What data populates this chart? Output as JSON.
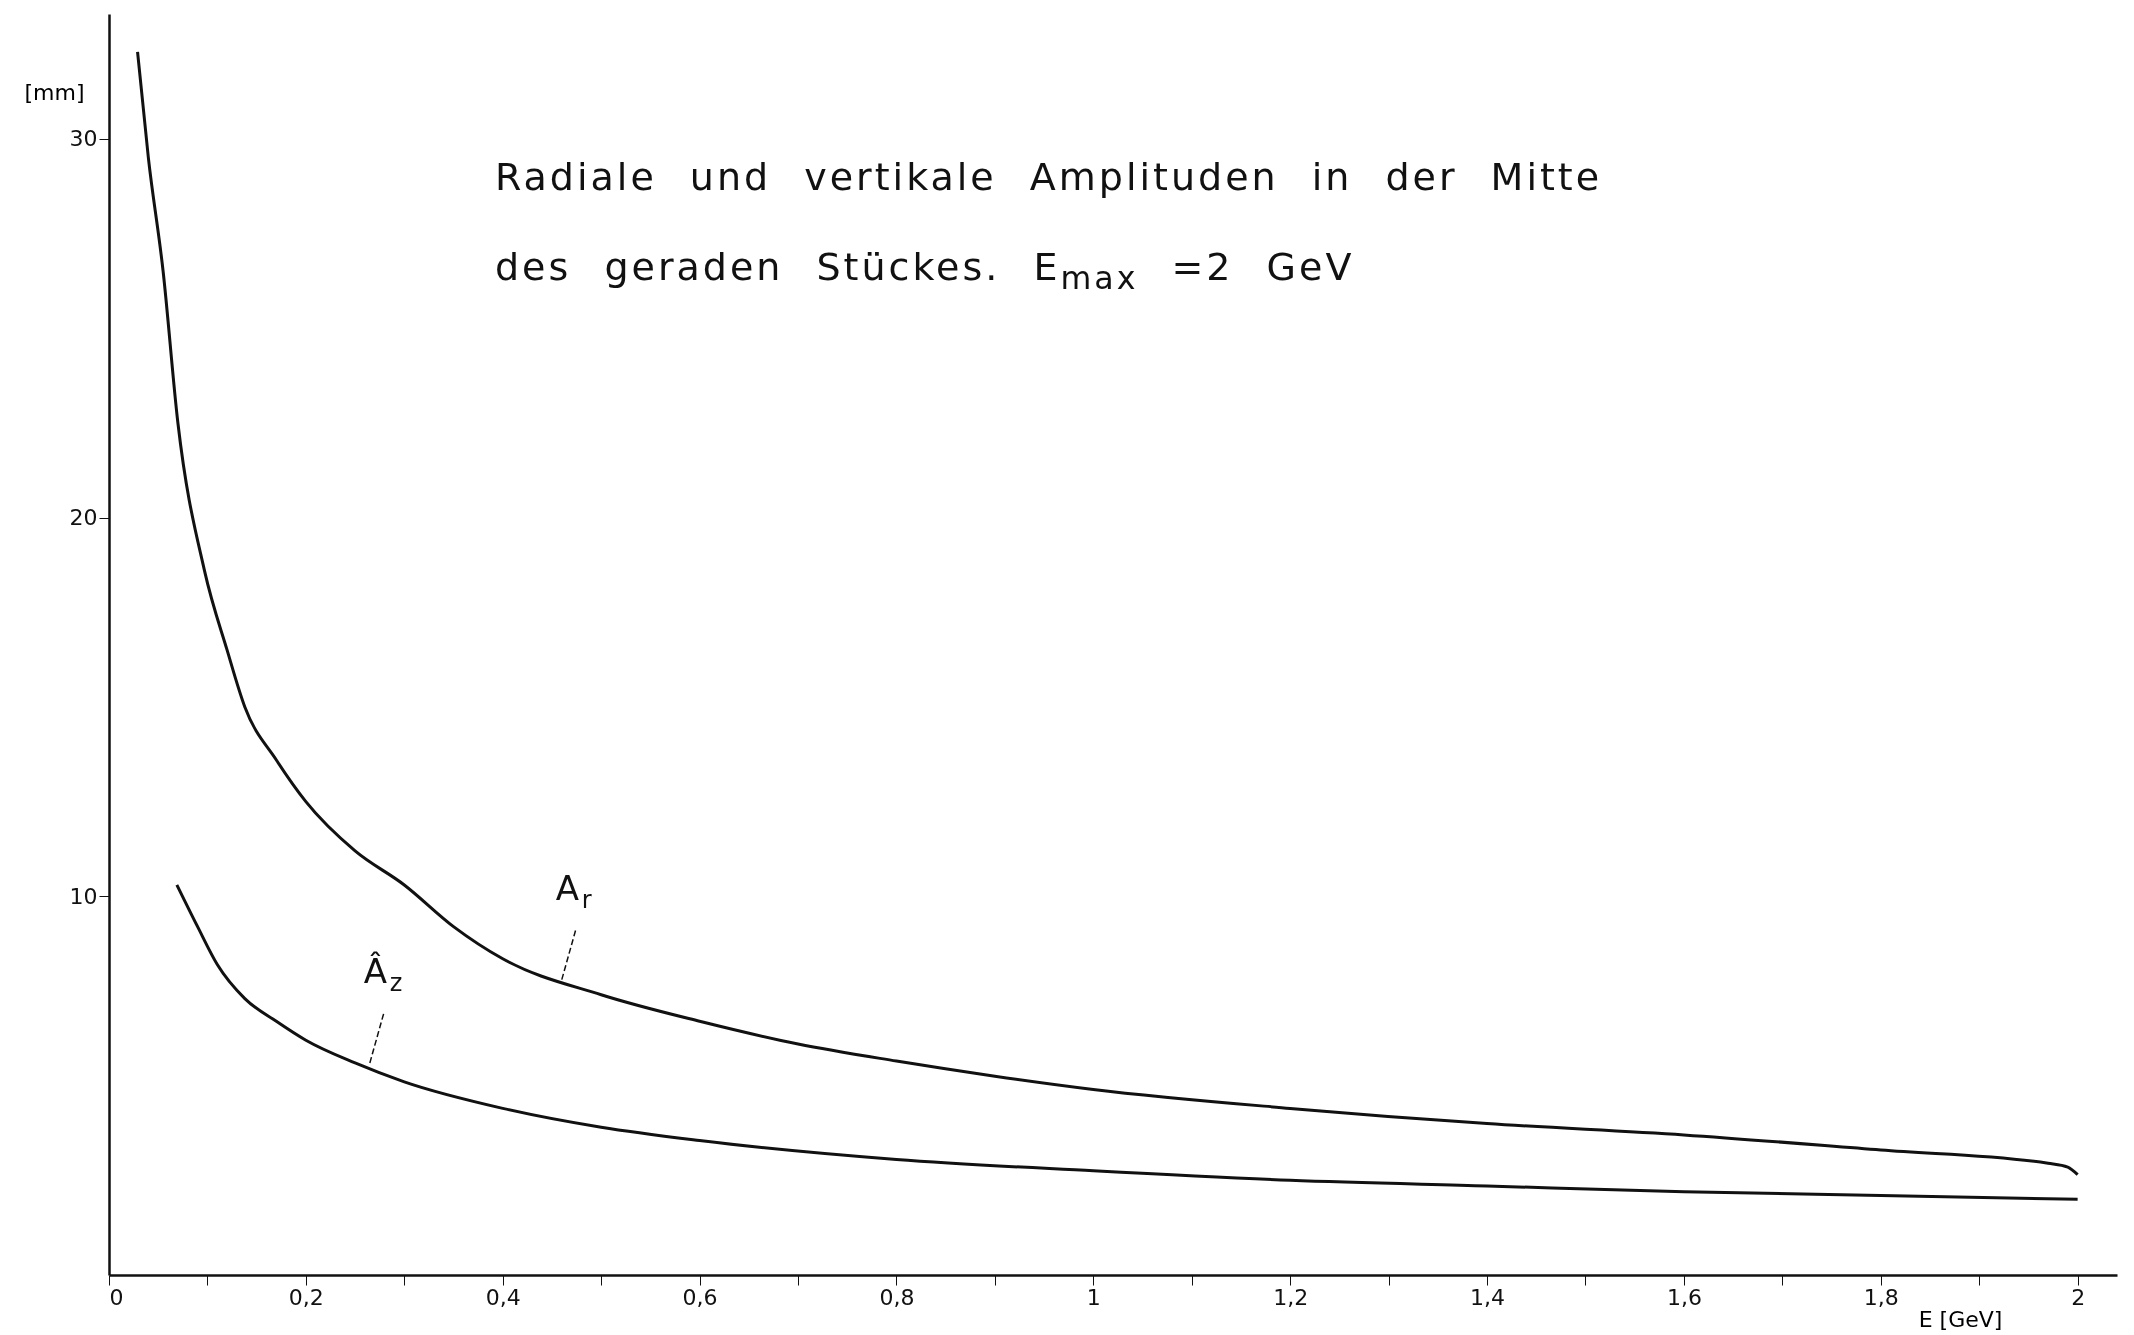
{
  "chart_data": {
    "type": "line",
    "title": "Radiale und vertikale Amplituden in der Mitte",
    "subtitle": "des geraden Stückes. E$_{max}$ =2 GeV",
    "xlabel": "E [GeV]",
    "ylabel": "[mm]",
    "xlim": [
      0,
      2.04
    ],
    "ylim": [
      0,
      33.3
    ],
    "xticks": [
      {
        "value": 0,
        "label": "0"
      },
      {
        "value": 0.1,
        "label": null
      },
      {
        "value": 0.2,
        "label": "0,2"
      },
      {
        "value": 0.3,
        "label": null
      },
      {
        "value": 0.4,
        "label": "0,4"
      },
      {
        "value": 0.5,
        "label": null
      },
      {
        "value": 0.6,
        "label": "0,6"
      },
      {
        "value": 0.7,
        "label": null
      },
      {
        "value": 0.8,
        "label": "0,8"
      },
      {
        "value": 0.9,
        "label": null
      },
      {
        "value": 1,
        "label": "1"
      },
      {
        "value": 1.1,
        "label": null
      },
      {
        "value": 1.2,
        "label": "1,2"
      },
      {
        "value": 1.3,
        "label": null
      },
      {
        "value": 1.4,
        "label": "1,4"
      },
      {
        "value": 1.5,
        "label": null
      },
      {
        "value": 1.6,
        "label": "1,6"
      },
      {
        "value": 1.7,
        "label": null
      },
      {
        "value": 1.8,
        "label": "1,8"
      },
      {
        "value": 1.9,
        "label": null
      },
      {
        "value": 2,
        "label": "2"
      }
    ],
    "yticks": [
      10,
      20,
      30
    ],
    "grid": false,
    "line_style": "solid",
    "series": [
      {
        "color": "#111111",
        "x": [
          0.029,
          0.04,
          0.055,
          0.07,
          0.097,
          0.12,
          0.138,
          0.17,
          0.2,
          0.25,
          0.3,
          0.35,
          0.4,
          0.5,
          0.6,
          0.7,
          0.8,
          0.9,
          1.0,
          1.2,
          1.4,
          1.6,
          1.8,
          1.97,
          1.99,
          2.0
        ],
        "values": [
          32.3,
          29.5,
          26.5,
          22.5,
          18.6,
          16.5,
          15,
          13.6,
          12.5,
          11.2,
          10.3,
          9.2,
          8.35,
          7.4,
          6.7,
          6.1,
          5.65,
          5.25,
          4.9,
          4.4,
          4.0,
          3.7,
          3.3,
          2.95,
          2.85,
          2.65
        ]
      },
      {
        "color": "#111111",
        "x": [
          0.069,
          0.09,
          0.11,
          0.138,
          0.17,
          0.2,
          0.25,
          0.3,
          0.4,
          0.5,
          0.6,
          0.8,
          1.0,
          1.2,
          1.4,
          1.6,
          1.8,
          2.0
        ],
        "values": [
          10.3,
          9.2,
          8.2,
          7.3,
          6.7,
          6.2,
          5.6,
          5.1,
          4.4,
          3.9,
          3.55,
          3.05,
          2.75,
          2.5,
          2.35,
          2.2,
          2.1,
          2.0
        ]
      }
    ],
    "annotations": [
      {
        "text": "A$_{r}$",
        "x": 0.46,
        "y": 7.8
      },
      {
        "text": "Â$_{z}$",
        "x": 0.265,
        "y": 5.6
      }
    ]
  }
}
